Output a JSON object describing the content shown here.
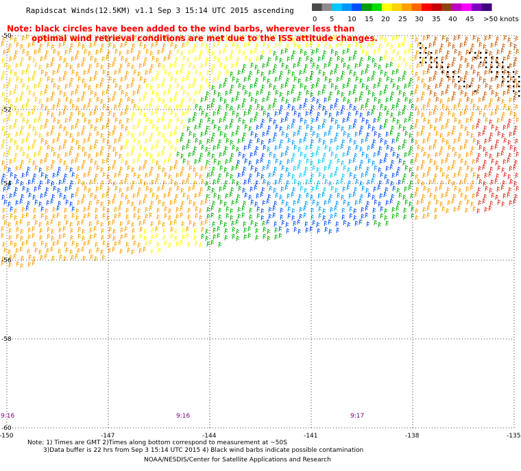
{
  "title": "Rapidscat Winds(12.5KM) v1.1 Sep  3 15:14 UTC 2015 ascending",
  "notes": {
    "line1": "Note: black circles have been added to the wind barbs, wherever less than",
    "line2": "optimal wind retrieval conditions are met due to the ISS attitude changes."
  },
  "colorbar": {
    "labels": [
      "0",
      "5",
      "10",
      "15",
      "20",
      "25",
      "30",
      "35",
      "40",
      "45",
      ">50 knots"
    ],
    "colors": [
      "#4a4a4a",
      "#8c8c8c",
      "#00c8ff",
      "#0096ff",
      "#0050ff",
      "#00a000",
      "#00dc00",
      "#ffff00",
      "#ffd200",
      "#ffa000",
      "#ff6400",
      "#ff0000",
      "#c80000",
      "#8b4513",
      "#c000c0",
      "#ff00ff",
      "#8000c0",
      "#400080"
    ]
  },
  "map": {
    "lat_labels": [
      "-50",
      "-52",
      "-54",
      "-56",
      "-58",
      "-60"
    ],
    "lon_labels": [
      "-150",
      "-147",
      "-144",
      "-141",
      "-138",
      "-135"
    ],
    "time_labels": [
      "9:16",
      "9:16",
      "9:17"
    ]
  },
  "footer": {
    "line1": "Note: 1) Times are GMT 2)Times along bottom correspond to measurement at ~50S",
    "line2": "3)Data buffer is 22 hrs from Sep  3 15:14 UTC 2015 4) Black wind barbs indicate possible contamination",
    "line3": "NOAA/NESDIS/Center for Satellite Applications and Research"
  }
}
